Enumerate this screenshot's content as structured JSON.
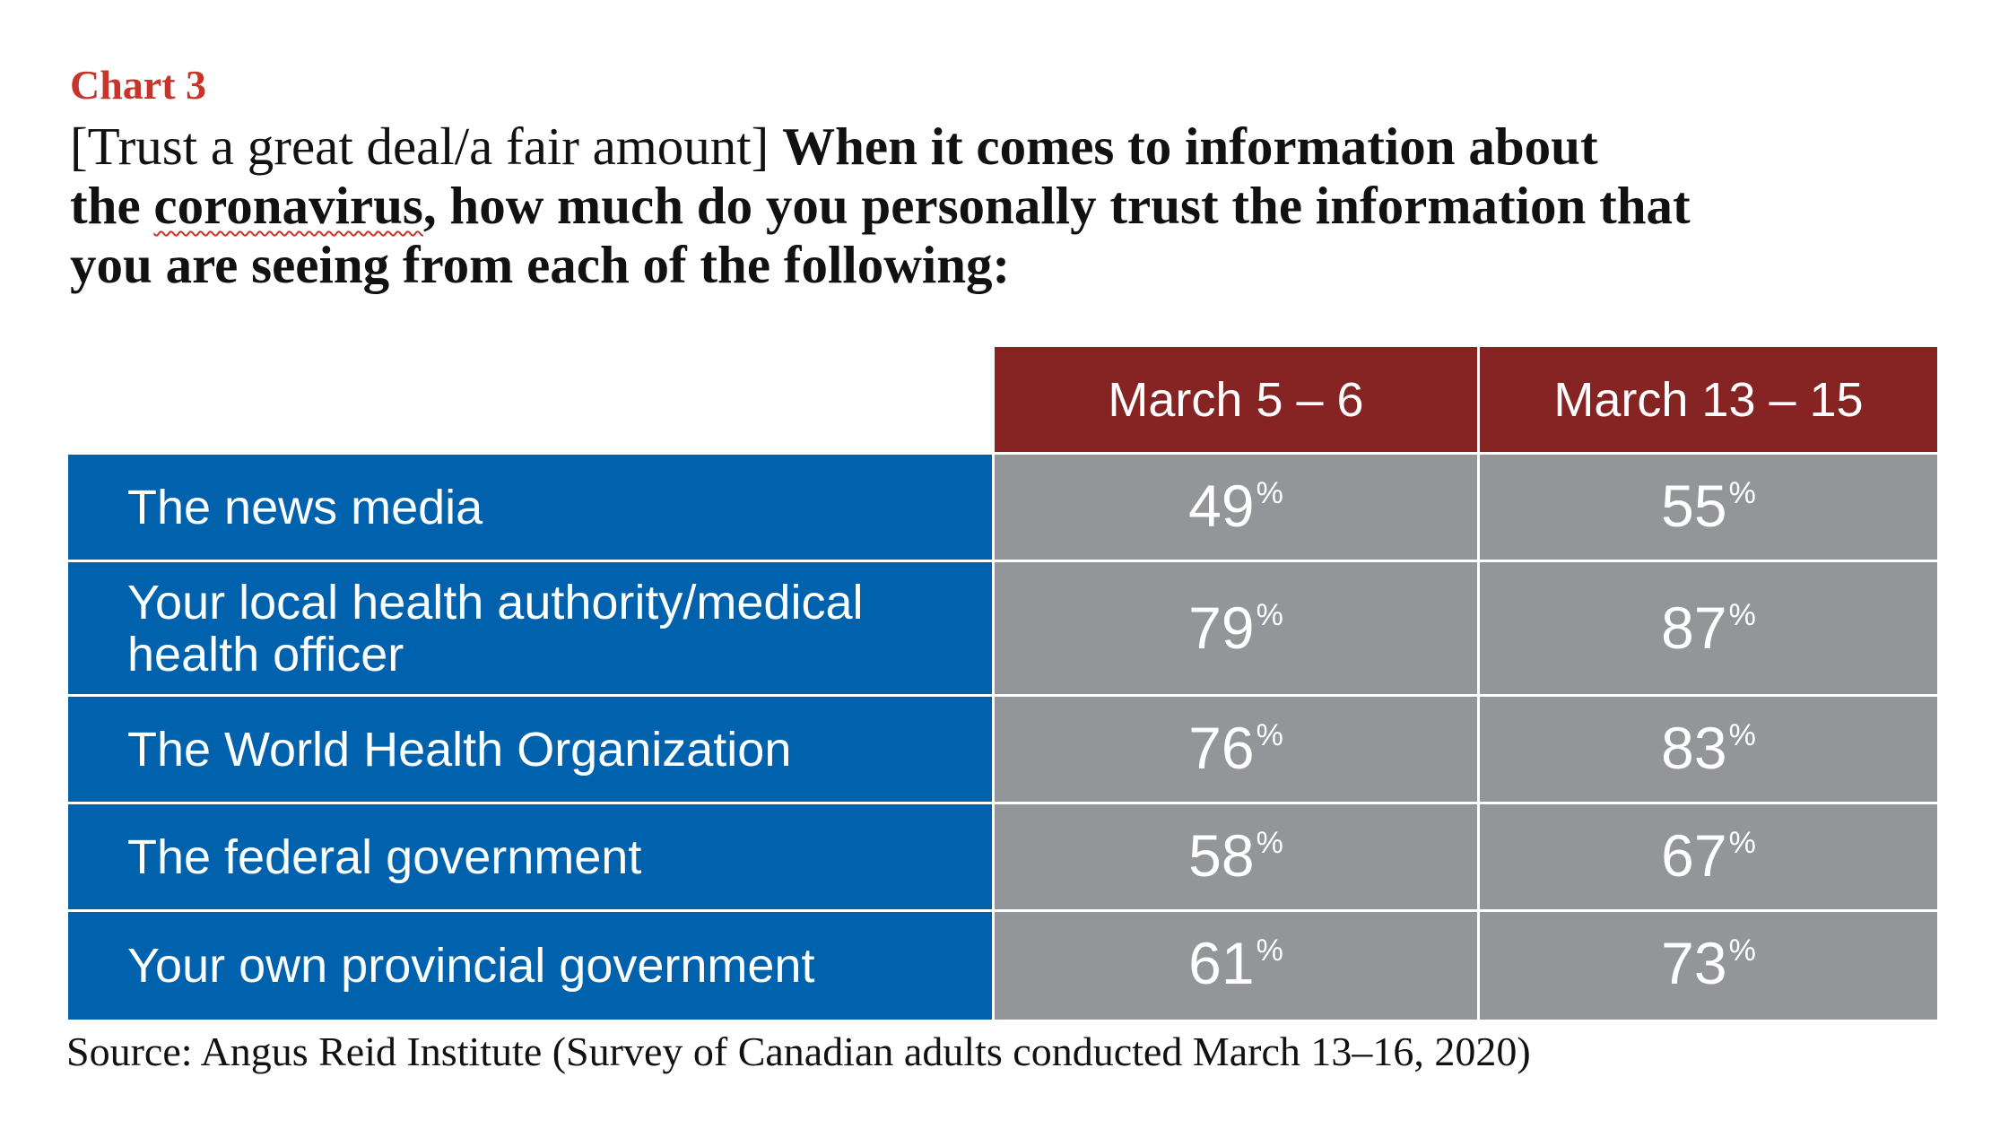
{
  "chart_label": "Chart 3",
  "question": {
    "lead": "[Trust a great deal/a fair amount]",
    "line1_bold": "When it comes to information about",
    "line2_pre": "the",
    "line2_word": "coronavirus",
    "line2_post": ", how much do you personally trust the information that",
    "line3": "you are seeing from each of the following:"
  },
  "colors": {
    "chart_label": "#c8332b",
    "header_bg": "#862424",
    "row_label_bg": "#0062ad",
    "value_bg": "#939598"
  },
  "chart_data": {
    "type": "table",
    "columns": [
      "March 5 – 6",
      "March 13 – 15"
    ],
    "rows": [
      {
        "label": "The news media",
        "values": [
          49,
          55
        ]
      },
      {
        "label": "Your local health authority/medical health officer",
        "values": [
          79,
          87
        ]
      },
      {
        "label": "The World Health Organization",
        "values": [
          76,
          83
        ]
      },
      {
        "label": "The federal government",
        "values": [
          58,
          67
        ]
      },
      {
        "label": "Your own provincial government",
        "values": [
          61,
          73
        ]
      }
    ],
    "unit": "%"
  },
  "source": "Source: Angus Reid Institute (Survey of Canadian adults conducted March 13–16, 2020)"
}
